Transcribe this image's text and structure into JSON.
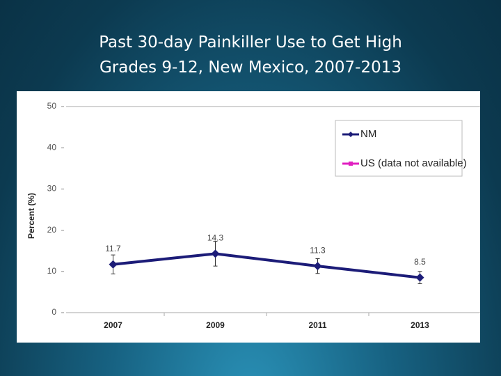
{
  "chart_data": {
    "type": "line",
    "title": "Past 30-day Painkiller Use to Get High",
    "subtitle": "Grades 9-12, New Mexico, 2007-2013",
    "y_label": "Percent (%)",
    "categories": [
      "2007",
      "2009",
      "2011",
      "2013"
    ],
    "series": [
      {
        "name": "NM",
        "color": "#1c1c78",
        "values": [
          11.7,
          14.3,
          11.3,
          8.5
        ],
        "errors": [
          2.3,
          3.0,
          1.8,
          1.5
        ]
      },
      {
        "name": "US (data not available)",
        "color": "#e020c0",
        "values": [
          null,
          null,
          null,
          null
        ]
      }
    ],
    "ylim": [
      0,
      50
    ],
    "yticks": [
      0,
      10,
      20,
      30,
      40,
      50
    ],
    "grid": false,
    "legend": "upper right"
  }
}
